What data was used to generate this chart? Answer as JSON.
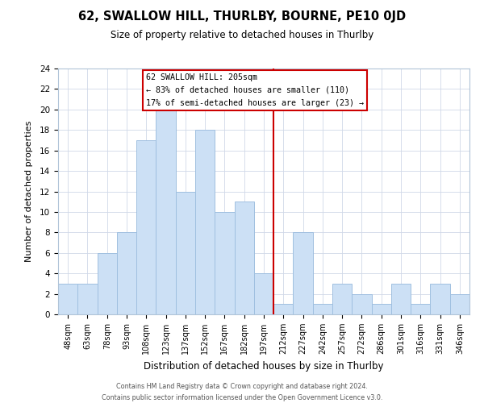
{
  "title": "62, SWALLOW HILL, THURLBY, BOURNE, PE10 0JD",
  "subtitle": "Size of property relative to detached houses in Thurlby",
  "xlabel": "Distribution of detached houses by size in Thurlby",
  "ylabel": "Number of detached properties",
  "bar_labels": [
    "48sqm",
    "63sqm",
    "78sqm",
    "93sqm",
    "108sqm",
    "123sqm",
    "137sqm",
    "152sqm",
    "167sqm",
    "182sqm",
    "197sqm",
    "212sqm",
    "227sqm",
    "242sqm",
    "257sqm",
    "272sqm",
    "286sqm",
    "301sqm",
    "316sqm",
    "331sqm",
    "346sqm"
  ],
  "bar_values": [
    3,
    3,
    6,
    8,
    17,
    20,
    12,
    18,
    10,
    11,
    4,
    1,
    8,
    1,
    3,
    2,
    1,
    3,
    1,
    3,
    2
  ],
  "bar_color": "#cce0f5",
  "bar_edge_color": "#a0c0e0",
  "vline_x": 10.5,
  "vline_color": "#cc0000",
  "annotation_title": "62 SWALLOW HILL: 205sqm",
  "annotation_line1": "← 83% of detached houses are smaller (110)",
  "annotation_line2": "17% of semi-detached houses are larger (23) →",
  "annotation_box_color": "#ffffff",
  "annotation_box_edge": "#cc0000",
  "ylim": [
    0,
    24
  ],
  "yticks": [
    0,
    2,
    4,
    6,
    8,
    10,
    12,
    14,
    16,
    18,
    20,
    22,
    24
  ],
  "footer_line1": "Contains HM Land Registry data © Crown copyright and database right 2024.",
  "footer_line2": "Contains public sector information licensed under the Open Government Licence v3.0.",
  "bg_color": "#ffffff",
  "grid_color": "#d0d8e8"
}
